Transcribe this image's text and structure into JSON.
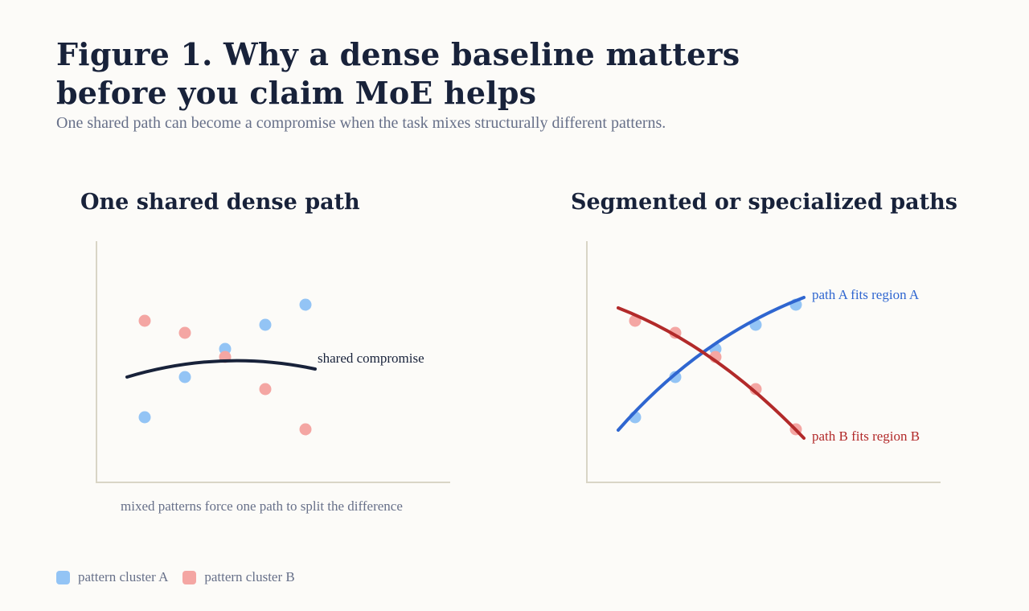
{
  "figure": {
    "title_line1": "Figure 1. Why a dense baseline matters",
    "title_line2": "before you claim MoE helps",
    "subtitle": "One shared path can become a compromise when the task mixes structurally different patterns."
  },
  "left_panel": {
    "title": "One shared dense path",
    "curve_label": "shared compromise",
    "caption": "mixed patterns force one path to split the difference"
  },
  "right_panel": {
    "title": "Segmented or specialized paths",
    "path_a_label": "path A fits region A",
    "path_b_label": "path B fits region B"
  },
  "legend": {
    "cluster_a": "pattern cluster A",
    "cluster_b": "pattern cluster B"
  },
  "colors": {
    "cluster_a": "#93c4f5",
    "cluster_b": "#f4a6a3",
    "shared_path": "#18223a",
    "path_a": "#2f66d0",
    "path_b": "#b22a2a",
    "axis": "#d9d5c6",
    "background": "#fcfbf8"
  }
}
